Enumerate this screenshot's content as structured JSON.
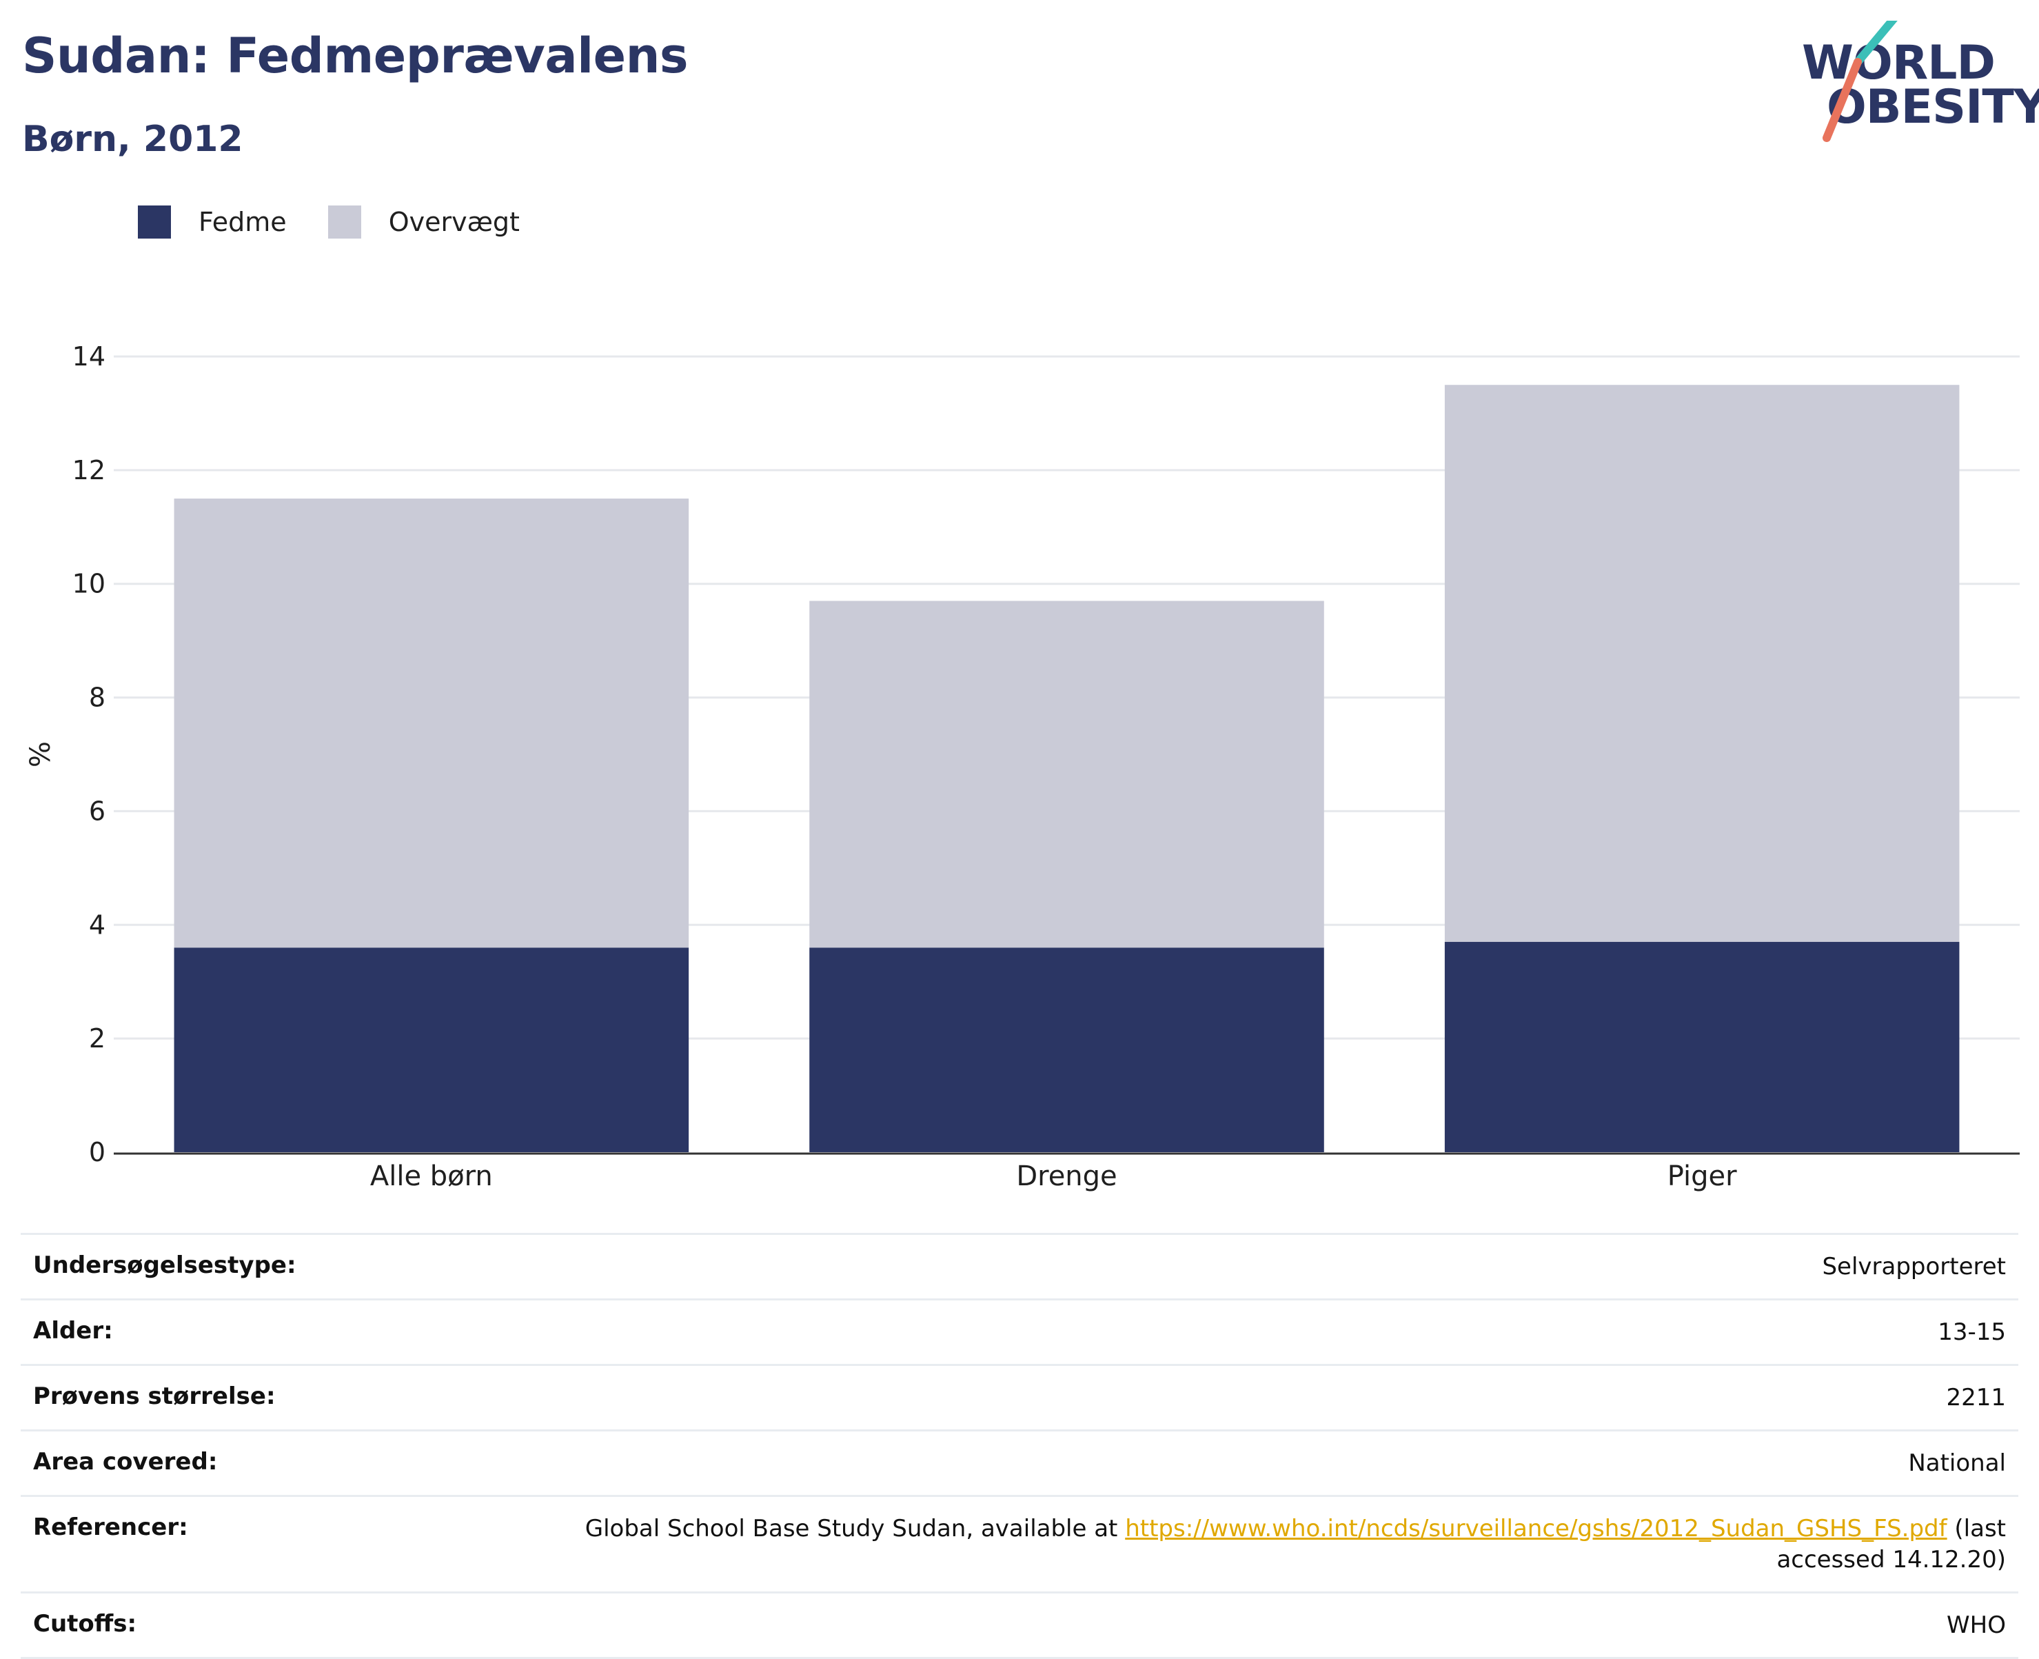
{
  "header": {
    "title": "Sudan: Fedmeprævalens",
    "subtitle": "Børn, 2012",
    "logo_line1": "WORLD",
    "logo_line2": "OBESITY"
  },
  "colors": {
    "fedme": "#2b3664",
    "overvaegt": "#cacbd7",
    "logo_teal": "#3bbfb8",
    "logo_coral": "#e8735c",
    "link": "#e0a800"
  },
  "chart_data": {
    "type": "bar",
    "stacked": true,
    "categories": [
      "Alle børn",
      "Drenge",
      "Piger"
    ],
    "series": [
      {
        "name": "Fedme",
        "values": [
          3.6,
          3.6,
          3.7
        ]
      },
      {
        "name": "Overvægt",
        "values": [
          7.9,
          6.1,
          9.8
        ]
      }
    ],
    "ylabel": "%",
    "ylim": [
      0,
      14
    ],
    "yticks": [
      0,
      2,
      4,
      6,
      8,
      10,
      12,
      14
    ],
    "grid": true,
    "legend_position": "top-left"
  },
  "meta": {
    "rows": [
      {
        "label": "Undersøgelsestype:",
        "value": "Selvrapporteret"
      },
      {
        "label": "Alder:",
        "value": "13-15"
      },
      {
        "label": "Prøvens størrelse:",
        "value": "2211"
      },
      {
        "label": "Area covered:",
        "value": "National"
      },
      {
        "label": "Referencer:",
        "value_prefix": "Global School Base Study Sudan, available at ",
        "link": "https://www.who.int/ncds/surveillance/gshs/2012_Sudan_GSHS_FS.pdf",
        "value_suffix": " (last accessed 14.12.20)"
      },
      {
        "label": "Cutoffs:",
        "value": "WHO"
      }
    ]
  }
}
